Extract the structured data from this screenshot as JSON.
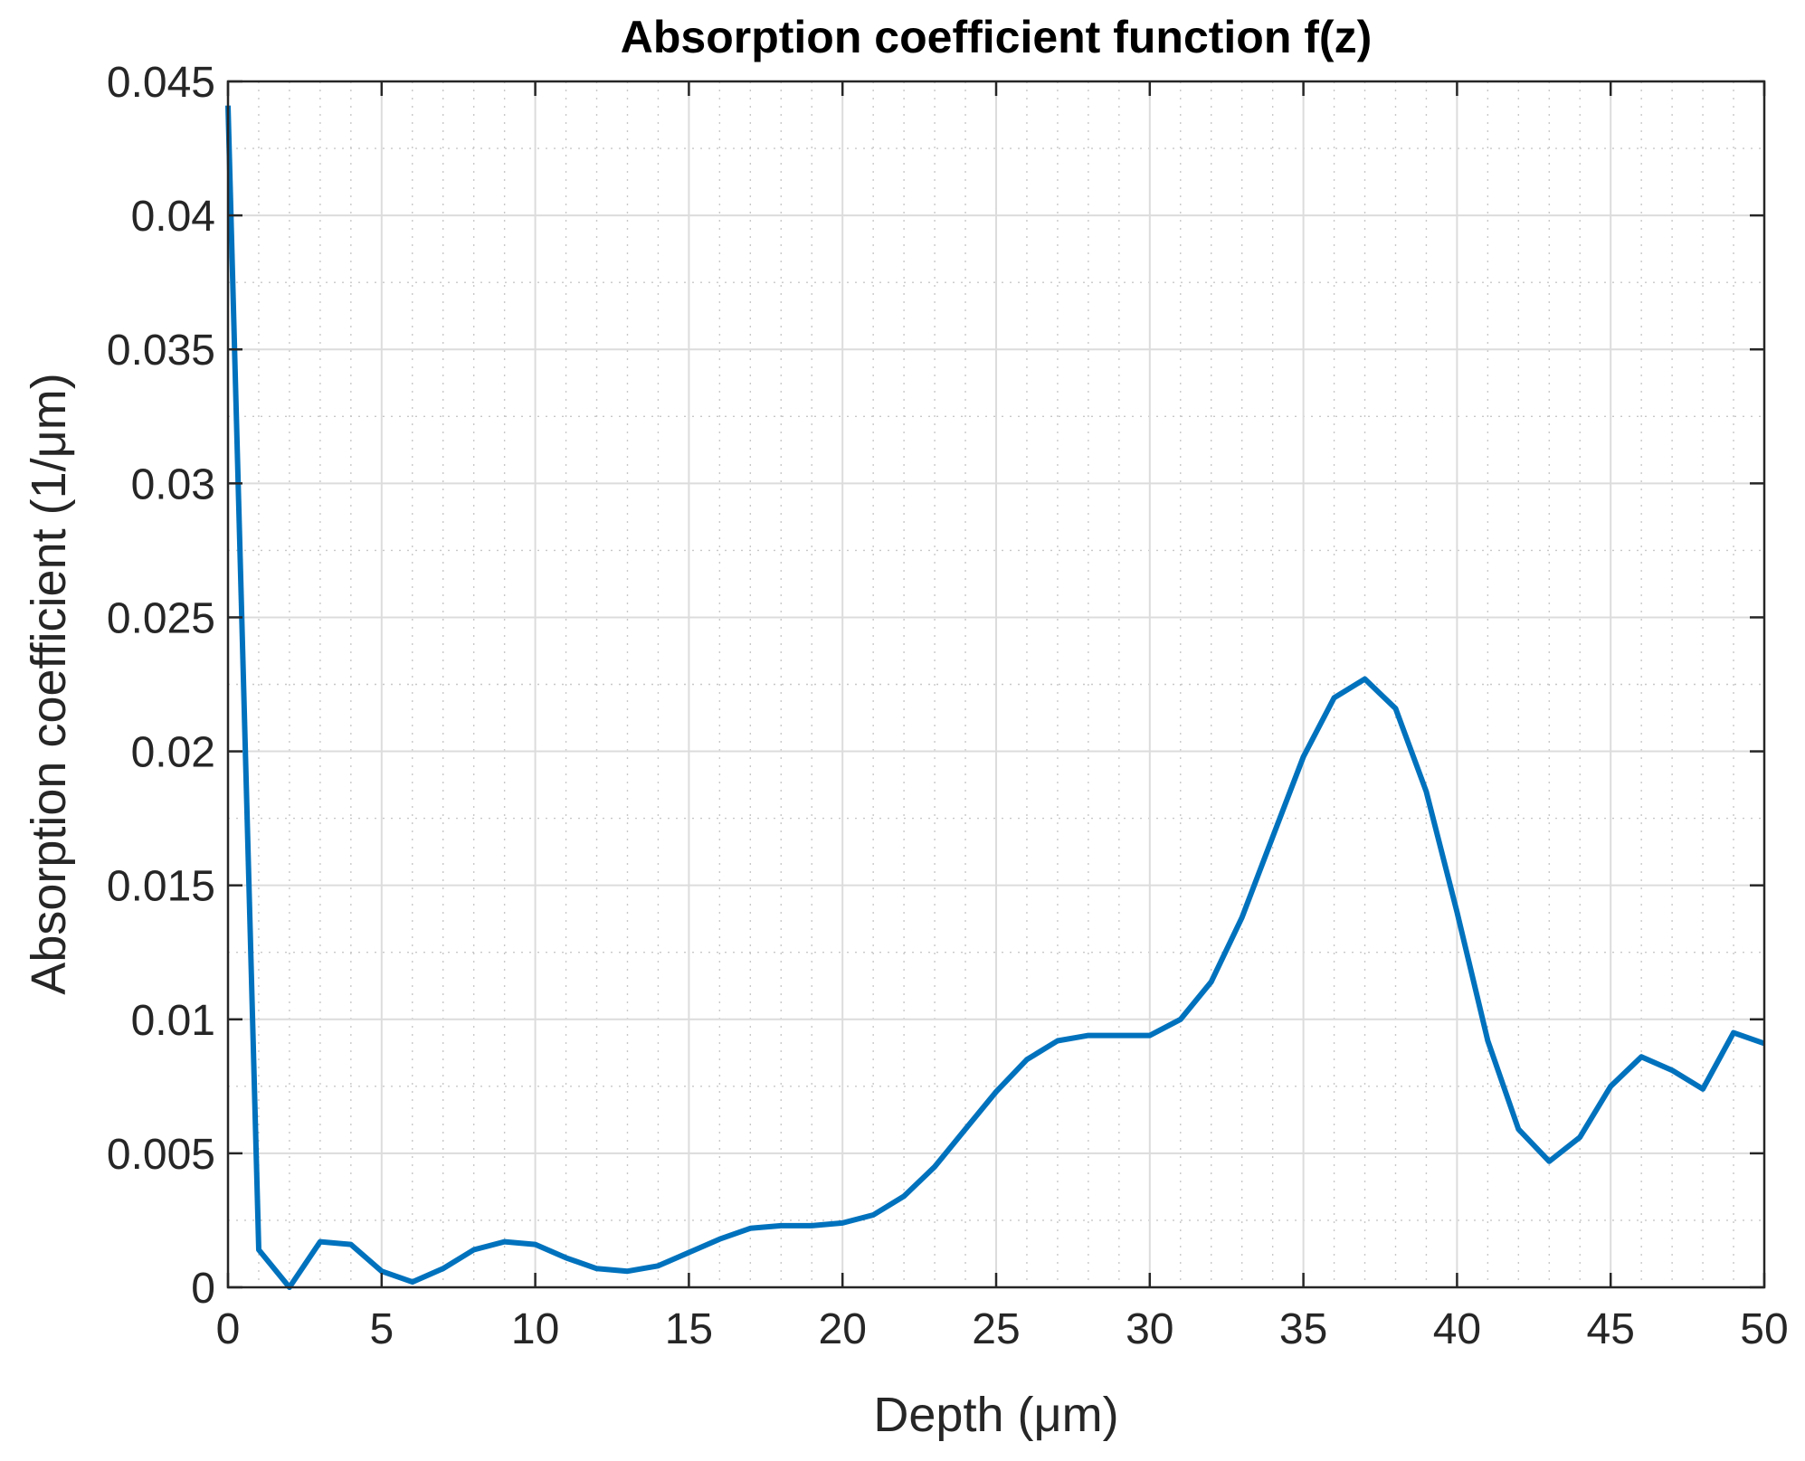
{
  "chart_data": {
    "type": "line",
    "title": "Absorption coefficient function f(z)",
    "xlabel": "Depth (μm)",
    "ylabel": "Absorption coefficient (1/μm)",
    "xlim": [
      0,
      50
    ],
    "ylim": [
      0,
      0.045
    ],
    "x_ticks": [
      0,
      5,
      10,
      15,
      20,
      25,
      30,
      35,
      40,
      45,
      50
    ],
    "y_ticks": [
      0,
      0.005,
      0.01,
      0.015,
      0.02,
      0.025,
      0.03,
      0.035,
      0.04,
      0.045
    ],
    "x_tick_labels": [
      "0",
      "5",
      "10",
      "15",
      "20",
      "25",
      "30",
      "35",
      "40",
      "45",
      "50"
    ],
    "y_tick_labels": [
      "0",
      "0.005",
      "0.01",
      "0.015",
      "0.02",
      "0.025",
      "0.03",
      "0.035",
      "0.04",
      "0.045"
    ],
    "grid": true,
    "minor_grid": true,
    "line_color": "#0072BD",
    "series": [
      {
        "x": [
          0,
          1,
          2,
          3,
          4,
          5,
          6,
          7,
          8,
          9,
          10,
          11,
          12,
          13,
          14,
          15,
          16,
          17,
          18,
          19,
          20,
          21,
          22,
          23,
          24,
          25,
          26,
          27,
          28,
          29,
          30,
          31,
          32,
          33,
          34,
          35,
          36,
          37,
          38,
          39,
          40,
          41,
          42,
          43,
          44,
          45,
          46,
          47,
          48,
          49,
          50
        ],
        "y": [
          0.0441,
          0.0014,
          0.0,
          0.0017,
          0.0016,
          0.0006,
          0.0002,
          0.0007,
          0.0014,
          0.0017,
          0.0016,
          0.0011,
          0.0007,
          0.0006,
          0.0008,
          0.0013,
          0.0018,
          0.0022,
          0.0023,
          0.0023,
          0.0024,
          0.0027,
          0.0034,
          0.0045,
          0.0059,
          0.0073,
          0.0085,
          0.0092,
          0.0094,
          0.0094,
          0.0094,
          0.01,
          0.0114,
          0.0138,
          0.0168,
          0.0198,
          0.022,
          0.0227,
          0.0216,
          0.0185,
          0.014,
          0.0092,
          0.0059,
          0.0047,
          0.0056,
          0.0075,
          0.0086,
          0.0081,
          0.0074,
          0.0095,
          0.0091
        ]
      }
    ]
  }
}
